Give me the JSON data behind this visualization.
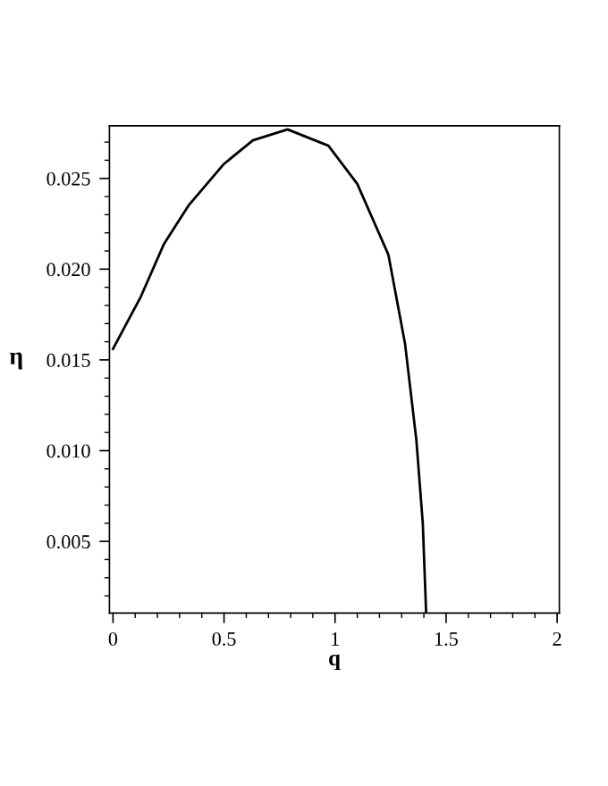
{
  "chart_data": {
    "type": "line",
    "xlabel": "q",
    "ylabel": "η",
    "x": [
      0,
      0.126,
      0.23,
      0.34,
      0.5,
      0.63,
      0.786,
      0.97,
      1.1,
      1.24,
      1.315,
      1.366,
      1.395,
      1.41
    ],
    "series": [
      {
        "color": "#000000",
        "values": [
          0.0156,
          0.0185,
          0.0214,
          0.0235,
          0.0258,
          0.0271,
          0.0277,
          0.0268,
          0.0247,
          0.0208,
          0.0159,
          0.0106,
          0.006,
          0.0011
        ]
      }
    ],
    "xlim": [
      -0.016,
      2.01
    ],
    "ylim": [
      0.00105,
      0.0279
    ],
    "xticks": [
      0,
      0.5,
      1,
      1.5,
      2
    ],
    "yticks": [
      {
        "value": 0.005,
        "label": "0.005"
      },
      {
        "value": 0.01,
        "label": "0.010"
      },
      {
        "value": 0.015,
        "label": "0.015"
      },
      {
        "value": 0.02,
        "label": "0.020"
      },
      {
        "value": 0.025,
        "label": "0.025"
      }
    ],
    "grid": false,
    "legend": false,
    "marker": "none",
    "line_style": "solid"
  }
}
